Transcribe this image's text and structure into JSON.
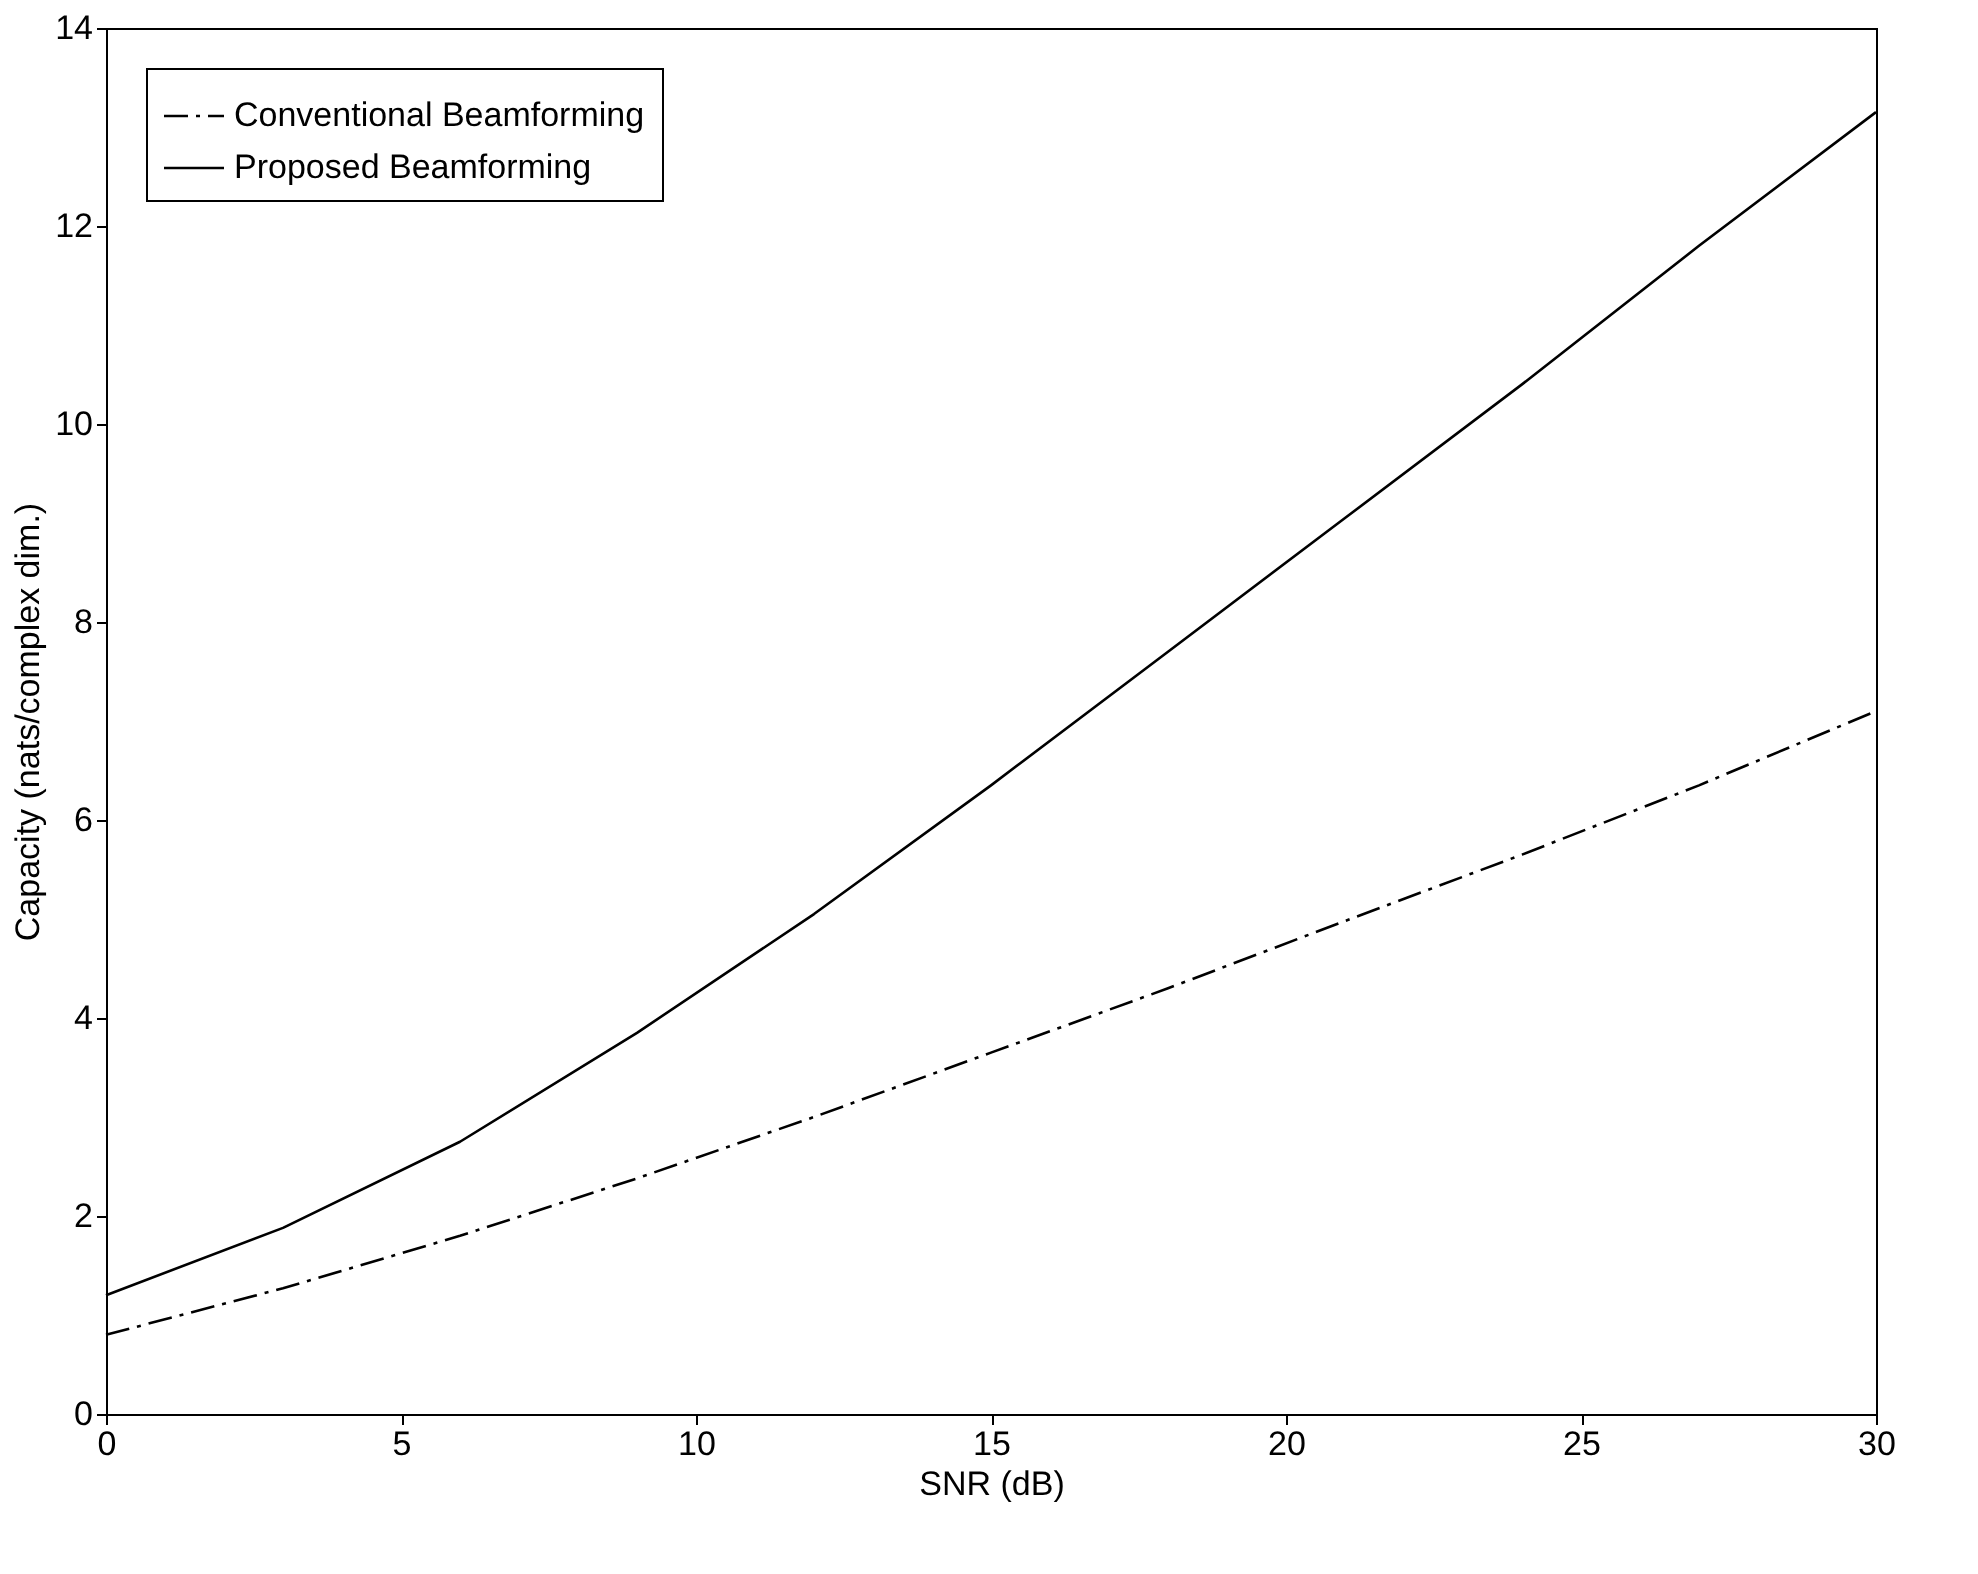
{
  "chart_data": {
    "type": "line",
    "xlabel": "SNR (dB)",
    "ylabel": "Capacity (nats/complex dim.)",
    "x": [
      0,
      3,
      6,
      9,
      12,
      15,
      18,
      21,
      24,
      27,
      30
    ],
    "series": [
      {
        "name": "Conventional Beamforming",
        "color": "#000000",
        "line_style": "dashdot",
        "values": [
          0.8,
          1.27,
          1.8,
          2.38,
          3.0,
          3.65,
          4.3,
          4.98,
          5.65,
          6.35,
          7.1
        ]
      },
      {
        "name": "Proposed Beamforming",
        "color": "#000000",
        "line_style": "solid",
        "values": [
          1.2,
          1.88,
          2.75,
          3.85,
          5.05,
          6.35,
          7.7,
          9.05,
          10.4,
          11.8,
          13.15
        ]
      }
    ],
    "xlim": [
      0,
      30
    ],
    "xticks": [
      0,
      5,
      10,
      15,
      20,
      25,
      30
    ],
    "ylim": [
      0,
      14
    ],
    "yticks": [
      0,
      2,
      4,
      6,
      8,
      10,
      12,
      14
    ],
    "grid": false,
    "legend": "top left",
    "marker": "none"
  }
}
